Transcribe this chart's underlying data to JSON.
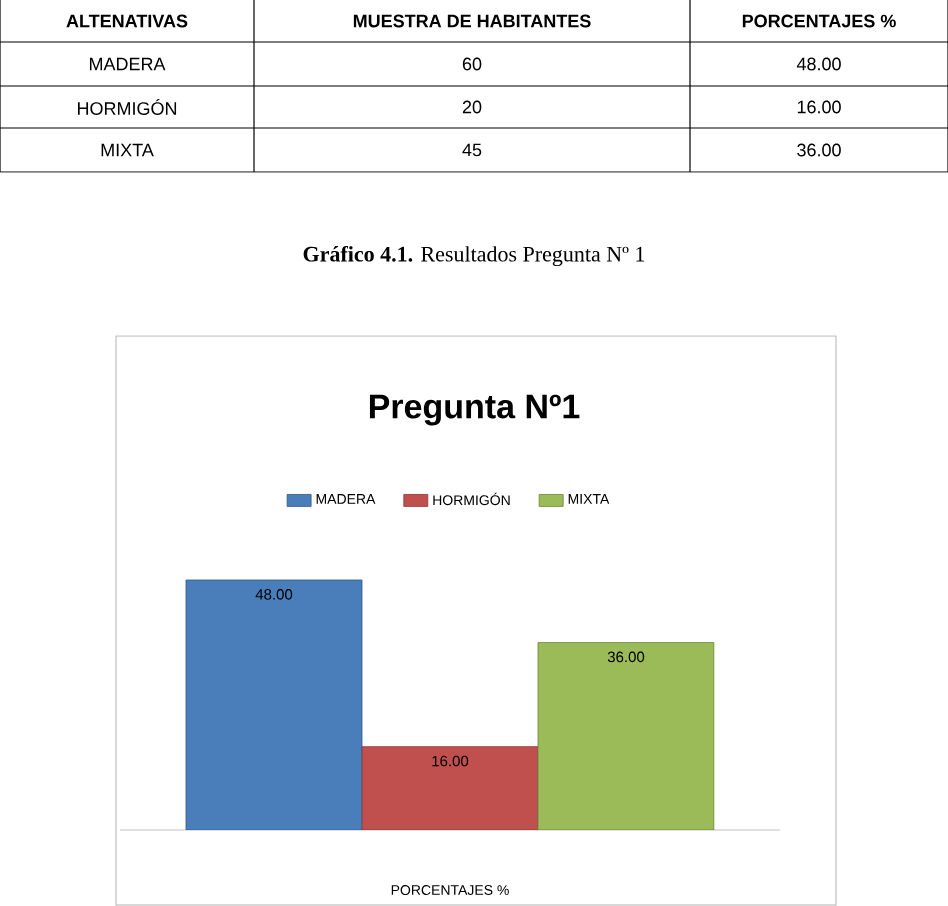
{
  "chart_data": {
    "type": "bar",
    "title": "Pregunta Nº1",
    "xlabel": "PORCENTAJES %",
    "categories": [
      null
    ],
    "series": [
      {
        "name": "MADERA",
        "color": "#4a7ebb",
        "values": [
          48
        ],
        "value_labels": [
          "48.00"
        ]
      },
      {
        "name": "HORMIGÓN",
        "color": "#c0504d",
        "values": [
          16
        ],
        "value_labels": [
          "16.00"
        ]
      },
      {
        "name": "MIXTA",
        "color": "#9bbb59",
        "values": [
          36
        ],
        "value_labels": [
          "36.00"
        ]
      }
    ],
    "legend": "top",
    "annotations": [
      "ALTENATIVAS",
      "MUESTRA DE HABITANTES",
      "PORCENTAJES %",
      "MADERA",
      "60",
      "48.00",
      "HORMIGÓN",
      "20",
      "16.00",
      "MIXTA",
      "45",
      "36.00",
      "**Gráfico 4.1.** Resultados Pregunta Nº 1"
    ]
  }
}
